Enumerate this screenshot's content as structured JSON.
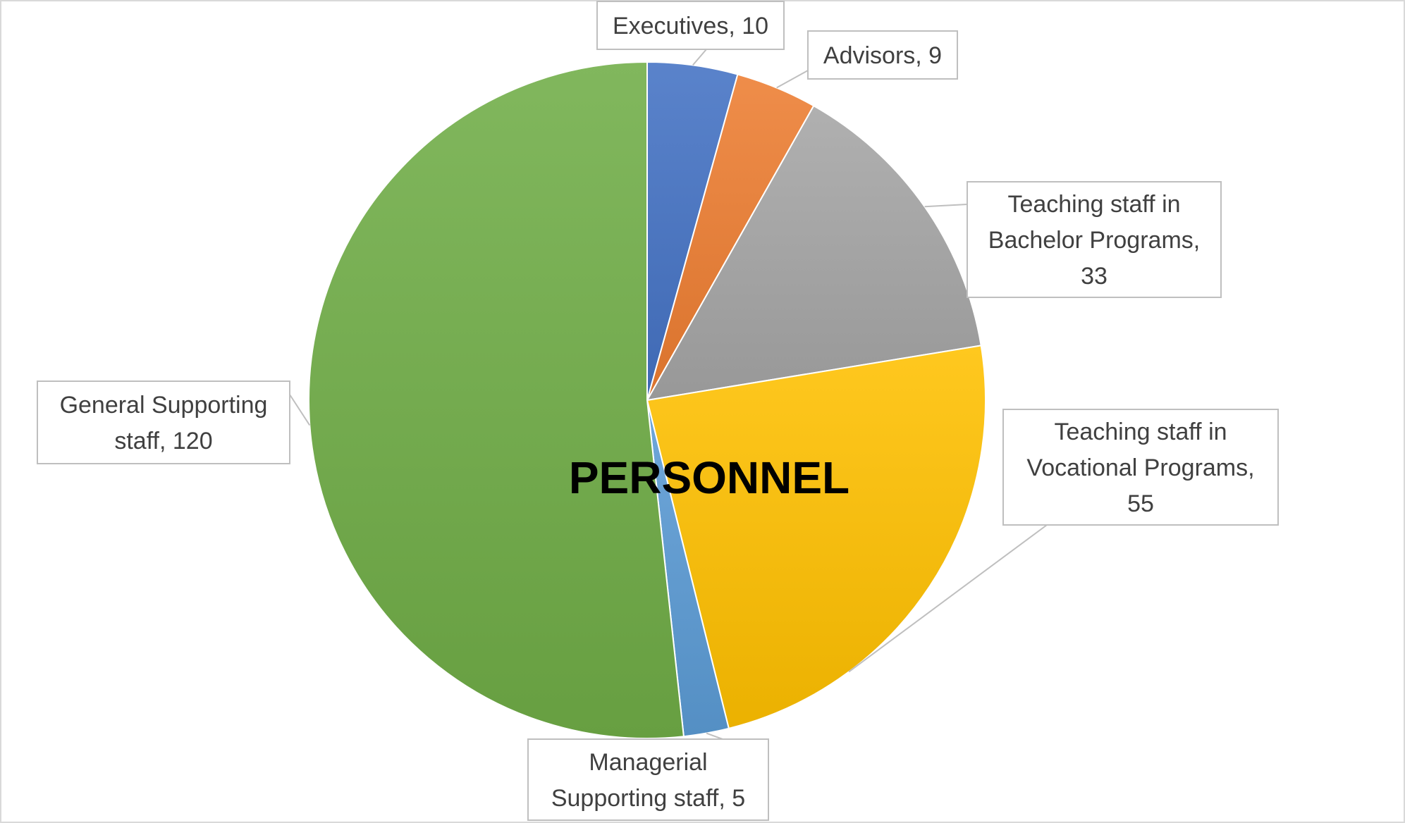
{
  "chart_data": {
    "type": "pie",
    "title": "PERSONNEL",
    "slices": [
      {
        "name": "Executives",
        "value": 10,
        "label_lines": [
          "Executives, 10"
        ],
        "color": "#4472C4"
      },
      {
        "name": "Advisors",
        "value": 9,
        "label_lines": [
          "Advisors, 9"
        ],
        "color": "#ED7D31"
      },
      {
        "name": "Teaching staff in Bachelor Programs",
        "value": 33,
        "label_lines": [
          "Teaching staff in",
          "Bachelor Programs,",
          "33"
        ],
        "color": "#A5A5A5"
      },
      {
        "name": "Teaching staff in Vocational Programs",
        "value": 55,
        "label_lines": [
          "Teaching staff in",
          "Vocational Programs,",
          "55"
        ],
        "color": "#FFC000"
      },
      {
        "name": "Managerial Supporting staff",
        "value": 5,
        "label_lines": [
          "Managerial",
          "Supporting staff, 5"
        ],
        "color": "#5B9BD5"
      },
      {
        "name": "General Supporting staff",
        "value": 120,
        "label_lines": [
          "General Supporting",
          "staff, 120"
        ],
        "color": "#70AD47"
      }
    ]
  }
}
